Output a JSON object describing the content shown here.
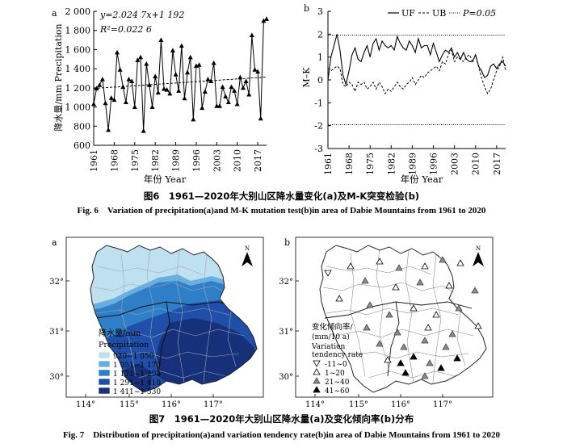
{
  "fig6": {
    "panel_a_label": "a",
    "panel_b_label": "b",
    "caption_cn": "图6　1961—2020年大别山区降水量变化(a)及M-K突变检验(b)",
    "caption_en": "Fig. 6　Variation of precipitation(a)and M-K mutation test(b)in area of Dabie Mountains from 1961 to 2020",
    "xlabel": "年份 Year",
    "a": {
      "equation": "y=2.024 7x+1 192",
      "r2": "R²=0.022 6",
      "ylabel": "降水量/mm Precipitation",
      "yticks": [
        "600",
        "800",
        "1 000",
        "1 200",
        "1 400",
        "1 600",
        "1 800",
        "2 000"
      ],
      "xticks": [
        "1961",
        "1968",
        "1975",
        "1982",
        "1989",
        "1996",
        "2003",
        "2010",
        "2017"
      ]
    },
    "b": {
      "ylabel": "M–K",
      "yticks": [
        "-3",
        "-2",
        "-1",
        "0",
        "1",
        "2",
        "3"
      ],
      "xticks": [
        "1961",
        "1968",
        "1975",
        "1982",
        "1989",
        "1996",
        "2003",
        "2010",
        "2017"
      ],
      "legend": [
        "UF",
        "UB",
        "P=0.05"
      ]
    }
  },
  "fig7": {
    "caption_cn": "图7　1961—2020年大别山区降水量(a)及变化倾向率(b)分布",
    "caption_en": "Fig. 7　Distribution of precipitation(a)and variation tendency rate(b)in area of Dabie Mountains from 1961 to 2020",
    "panel_a_label": "a",
    "panel_b_label": "b",
    "north": "N",
    "lon_ticks": [
      "114°",
      "115°",
      "116°",
      "117°"
    ],
    "lat_ticks": [
      "32°",
      "31°",
      "30°"
    ],
    "a_legend": {
      "title_cn": "降水量/mm",
      "title_en": "Precipitation",
      "classes": [
        {
          "label": "920~1 050",
          "color": "#bfe0ee"
        },
        {
          "label": "1 051~1 170",
          "color": "#6aaee0"
        },
        {
          "label": "1 171~1 290",
          "color": "#2f7fc8"
        },
        {
          "label": "1 291~1 410",
          "color": "#1f4fa8"
        },
        {
          "label": "1 411~1 530",
          "color": "#16307a"
        }
      ]
    },
    "b_legend": {
      "title_cn": "变化倾向率/",
      "title_unit": "(mm/10 a)",
      "title_en1": "Variation",
      "title_en2": "tendency rate",
      "classes": [
        "-11~0",
        "1~20",
        "21~40",
        "41~60"
      ]
    }
  },
  "chart_data": [
    {
      "type": "line",
      "title": "",
      "xlabel": "年份 Year",
      "ylabel": "降水量/mm Precipitation",
      "ylim": [
        600,
        2000
      ],
      "xlim": [
        1961,
        2020
      ],
      "trend": {
        "slope": 2.0247,
        "intercept": 1192,
        "r2": 0.0226
      },
      "series": [
        {
          "x": [
            1961,
            1962,
            1963,
            1964,
            1965,
            1966,
            1967,
            1968,
            1969,
            1970,
            1971,
            1972,
            1973,
            1974,
            1975,
            1976,
            1977,
            1978,
            1979,
            1980,
            1981,
            1982,
            1983,
            1984,
            1985,
            1986,
            1987,
            1988,
            1989,
            1990,
            1991,
            1992,
            1993,
            1994,
            1995,
            1996,
            1997,
            1998,
            1999,
            2000,
            2001,
            2002,
            2003,
            2004,
            2005,
            2006,
            2007,
            2008,
            2009,
            2010,
            2011,
            2012,
            2013,
            2014,
            2015,
            2016,
            2017,
            2018,
            2019,
            2020
          ],
          "values": [
            1030,
            1195,
            1230,
            1290,
            1040,
            760,
            1095,
            1075,
            1570,
            1390,
            1210,
            1050,
            1290,
            1270,
            1000,
            1490,
            1520,
            750,
            1450,
            1230,
            1000,
            1320,
            1150,
            1700,
            1190,
            1180,
            1140,
            1590,
            1340,
            1170,
            1640,
            1090,
            1360,
            1520,
            870,
            1430,
            1440,
            990,
            1160,
            1290,
            1270,
            1460,
            1010,
            1010,
            1210,
            1110,
            1050,
            1210,
            1170,
            1030,
            1310,
            1200,
            1270,
            1130,
            1750,
            1390,
            1370,
            880,
            1900,
            1920
          ]
        }
      ]
    },
    {
      "type": "line",
      "title": "",
      "xlabel": "年份 Year",
      "ylabel": "M–K",
      "ylim": [
        -3,
        3
      ],
      "xlim": [
        1961,
        2020
      ],
      "reference_lines": [
        1.96,
        -1.96
      ],
      "series": [
        {
          "name": "UF",
          "x": [
            1961,
            1962,
            1963,
            1964,
            1965,
            1966,
            1967,
            1968,
            1969,
            1970,
            1971,
            1972,
            1973,
            1974,
            1975,
            1976,
            1977,
            1978,
            1979,
            1980,
            1981,
            1982,
            1983,
            1984,
            1985,
            1986,
            1987,
            1988,
            1989,
            1990,
            1991,
            1992,
            1993,
            1994,
            1995,
            1996,
            1997,
            1998,
            1999,
            2000,
            2001,
            2002,
            2003,
            2004,
            2005,
            2006,
            2007,
            2008,
            2009,
            2010,
            2011,
            2012,
            2013,
            2014,
            2015,
            2016,
            2017,
            2018,
            2019,
            2020
          ],
          "values": [
            0.0,
            1.0,
            1.5,
            2.0,
            1.3,
            0.2,
            -0.2,
            0.4,
            1.1,
            1.4,
            0.9,
            0.8,
            1.2,
            1.5,
            1.0,
            1.6,
            1.8,
            1.3,
            1.7,
            1.5,
            1.4,
            1.5,
            1.3,
            1.9,
            1.6,
            1.4,
            1.3,
            1.7,
            1.5,
            1.2,
            1.8,
            1.4,
            1.5,
            1.5,
            1.1,
            1.6,
            1.2,
            0.8,
            1.1,
            1.3,
            1.2,
            1.4,
            1.0,
            1.2,
            0.9,
            1.2,
            0.9,
            0.8,
            0.8,
            1.1,
            0.6,
            0.4,
            0.1,
            0.2,
            0.6,
            0.7,
            0.5,
            0.7,
            0.8,
            0.6
          ]
        },
        {
          "name": "UB",
          "x": [
            1961,
            1962,
            1963,
            1964,
            1965,
            1966,
            1967,
            1968,
            1969,
            1970,
            1971,
            1972,
            1973,
            1974,
            1975,
            1976,
            1977,
            1978,
            1979,
            1980,
            1981,
            1982,
            1983,
            1984,
            1985,
            1986,
            1987,
            1988,
            1989,
            1990,
            1991,
            1992,
            1993,
            1994,
            1995,
            1996,
            1997,
            1998,
            1999,
            2000,
            2001,
            2002,
            2003,
            2004,
            2005,
            2006,
            2007,
            2008,
            2009,
            2010,
            2011,
            2012,
            2013,
            2014,
            2015,
            2016,
            2017,
            2018,
            2019,
            2020
          ],
          "values": [
            0.5,
            0.4,
            0.5,
            0.6,
            0.5,
            -0.2,
            -0.3,
            -0.1,
            -0.2,
            -0.5,
            -0.1,
            -0.2,
            -0.1,
            -0.4,
            -0.3,
            -0.1,
            -0.4,
            -0.1,
            -0.3,
            -0.6,
            -0.4,
            -0.5,
            -0.3,
            -0.1,
            -0.3,
            -0.4,
            -0.2,
            -0.1,
            0.1,
            -0.2,
            0.0,
            0.2,
            0.1,
            0.3,
            0.4,
            0.5,
            0.6,
            0.4,
            0.8,
            0.7,
            1.1,
            1.3,
            0.8,
            1.0,
            0.9,
            0.8,
            1.0,
            1.1,
            0.8,
            1.1,
            0.6,
            0.1,
            -0.3,
            -0.6,
            -0.4,
            0.0,
            0.4,
            0.6,
            1.0,
            0.4
          ]
        }
      ]
    }
  ]
}
